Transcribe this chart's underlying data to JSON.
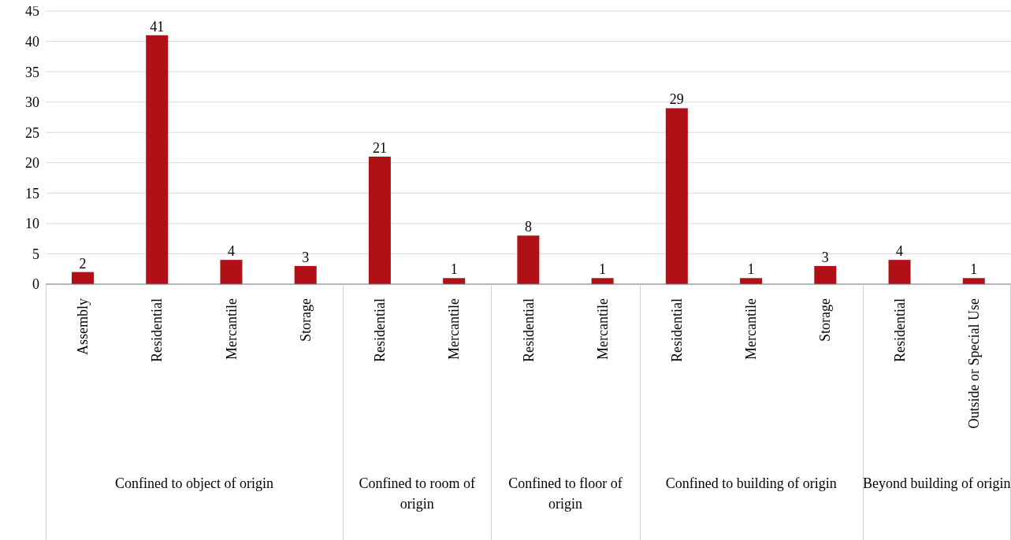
{
  "chart_data": {
    "type": "bar",
    "categories": [
      "Assembly",
      "Residential",
      "Mercantile",
      "Storage",
      "Residential",
      "Mercantile",
      "Residential",
      "Mercantile",
      "Residential",
      "Mercantile",
      "Storage",
      "Residential",
      "Outside or Special Use"
    ],
    "values": [
      2,
      41,
      4,
      3,
      21,
      1,
      8,
      1,
      29,
      1,
      3,
      4,
      1
    ],
    "color": "#b01116",
    "ylim": [
      0,
      45
    ],
    "yticks": [
      0,
      5,
      10,
      15,
      20,
      25,
      30,
      35,
      40,
      45
    ],
    "grid": "y",
    "data_labels": true,
    "annotations": [
      "Confined to object of origin",
      "Confined to room of origin",
      "Confined to floor of origin",
      "Confined to building of origin",
      "Beyond building of origin"
    ]
  }
}
